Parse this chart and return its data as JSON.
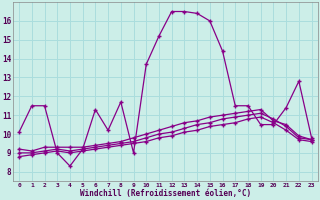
{
  "xlabel": "Windchill (Refroidissement éolien,°C)",
  "background_color": "#cceee8",
  "grid_color": "#aadddd",
  "line_color": "#880088",
  "xlim": [
    -0.5,
    23.5
  ],
  "ylim": [
    7.5,
    17.0
  ],
  "xticks": [
    0,
    1,
    2,
    3,
    4,
    5,
    6,
    7,
    8,
    9,
    10,
    11,
    12,
    13,
    14,
    15,
    16,
    17,
    18,
    19,
    20,
    21,
    22,
    23
  ],
  "yticks": [
    8,
    9,
    10,
    11,
    12,
    13,
    14,
    15,
    16
  ],
  "line1_x": [
    0,
    1,
    2,
    3,
    4,
    5,
    6,
    7,
    8,
    9,
    10,
    11,
    12,
    13,
    14,
    15,
    16,
    17,
    18,
    19,
    20,
    21,
    22,
    23
  ],
  "line1_y": [
    10.1,
    11.5,
    11.5,
    9.0,
    8.3,
    9.2,
    11.3,
    10.2,
    11.7,
    9.0,
    13.7,
    15.2,
    16.5,
    16.5,
    16.4,
    16.0,
    14.4,
    11.5,
    11.5,
    10.5,
    10.5,
    11.4,
    12.8,
    9.8
  ],
  "line2_x": [
    0,
    1,
    2,
    3,
    4,
    5,
    6,
    7,
    8,
    9,
    10,
    11,
    12,
    13,
    14,
    15,
    16,
    17,
    18,
    19,
    20,
    21,
    22,
    23
  ],
  "line2_y": [
    9.2,
    9.1,
    9.3,
    9.3,
    9.3,
    9.3,
    9.4,
    9.5,
    9.6,
    9.8,
    10.0,
    10.2,
    10.4,
    10.6,
    10.7,
    10.9,
    11.0,
    11.1,
    11.2,
    11.3,
    10.7,
    10.5,
    9.9,
    9.7
  ],
  "line3_x": [
    0,
    1,
    2,
    3,
    4,
    5,
    6,
    7,
    8,
    9,
    10,
    11,
    12,
    13,
    14,
    15,
    16,
    17,
    18,
    19,
    20,
    21,
    22,
    23
  ],
  "line3_y": [
    9.0,
    9.0,
    9.1,
    9.2,
    9.1,
    9.2,
    9.3,
    9.4,
    9.5,
    9.6,
    9.8,
    10.0,
    10.1,
    10.3,
    10.5,
    10.6,
    10.8,
    10.9,
    11.0,
    11.1,
    10.8,
    10.4,
    9.8,
    9.7
  ],
  "line4_x": [
    0,
    1,
    2,
    3,
    4,
    5,
    6,
    7,
    8,
    9,
    10,
    11,
    12,
    13,
    14,
    15,
    16,
    17,
    18,
    19,
    20,
    21,
    22,
    23
  ],
  "line4_y": [
    8.8,
    8.9,
    9.0,
    9.1,
    9.0,
    9.1,
    9.2,
    9.3,
    9.4,
    9.5,
    9.6,
    9.8,
    9.9,
    10.1,
    10.2,
    10.4,
    10.5,
    10.6,
    10.8,
    10.9,
    10.6,
    10.2,
    9.7,
    9.6
  ]
}
